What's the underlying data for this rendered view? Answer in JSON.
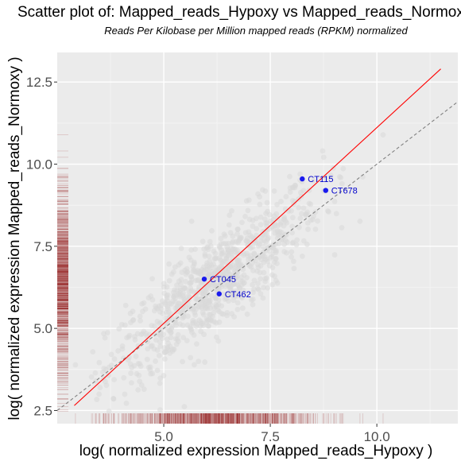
{
  "chart_data": {
    "type": "scatter",
    "title": "Scatter plot of: Mapped_reads_Hypoxy vs Mapped_reads_Normoxy",
    "subtitle": "Reads Per Kilobase per Million mapped reads (RPKM) normalized",
    "xlabel": "log( normalized expression Mapped_reads_Hypoxy )",
    "ylabel": "log( normalized expression Mapped_reads_Normoxy )",
    "xlim": [
      2.5,
      11.9
    ],
    "ylim": [
      2.1,
      13.4
    ],
    "x_ticks": [
      5.0,
      7.5,
      10.0
    ],
    "x_tick_labels": [
      "5.0",
      "7.5",
      "10.0"
    ],
    "y_ticks": [
      2.5,
      5.0,
      7.5,
      10.0,
      12.5
    ],
    "y_tick_labels": [
      "2.5",
      "5.0",
      "7.5",
      "10.0",
      "12.5"
    ],
    "grid": true,
    "background": "#ebebeb",
    "fit_line": {
      "x": [
        2.9,
        11.5
      ],
      "y": [
        2.65,
        12.9
      ],
      "color": "#ff0000"
    },
    "identity_line": {
      "slope": 1,
      "intercept": 0,
      "color": "#808080",
      "style": "dashed"
    },
    "highlighted_points": [
      {
        "label": "CT115",
        "x": 8.25,
        "y": 9.55
      },
      {
        "label": "CT678",
        "x": 8.8,
        "y": 9.2
      },
      {
        "label": "CT045",
        "x": 5.95,
        "y": 6.5
      },
      {
        "label": "CT462",
        "x": 6.3,
        "y": 6.05
      }
    ],
    "highlight_color": "#1a1aee",
    "background_points_color": "#d9d9d9",
    "rug_color": "#8b0000"
  }
}
